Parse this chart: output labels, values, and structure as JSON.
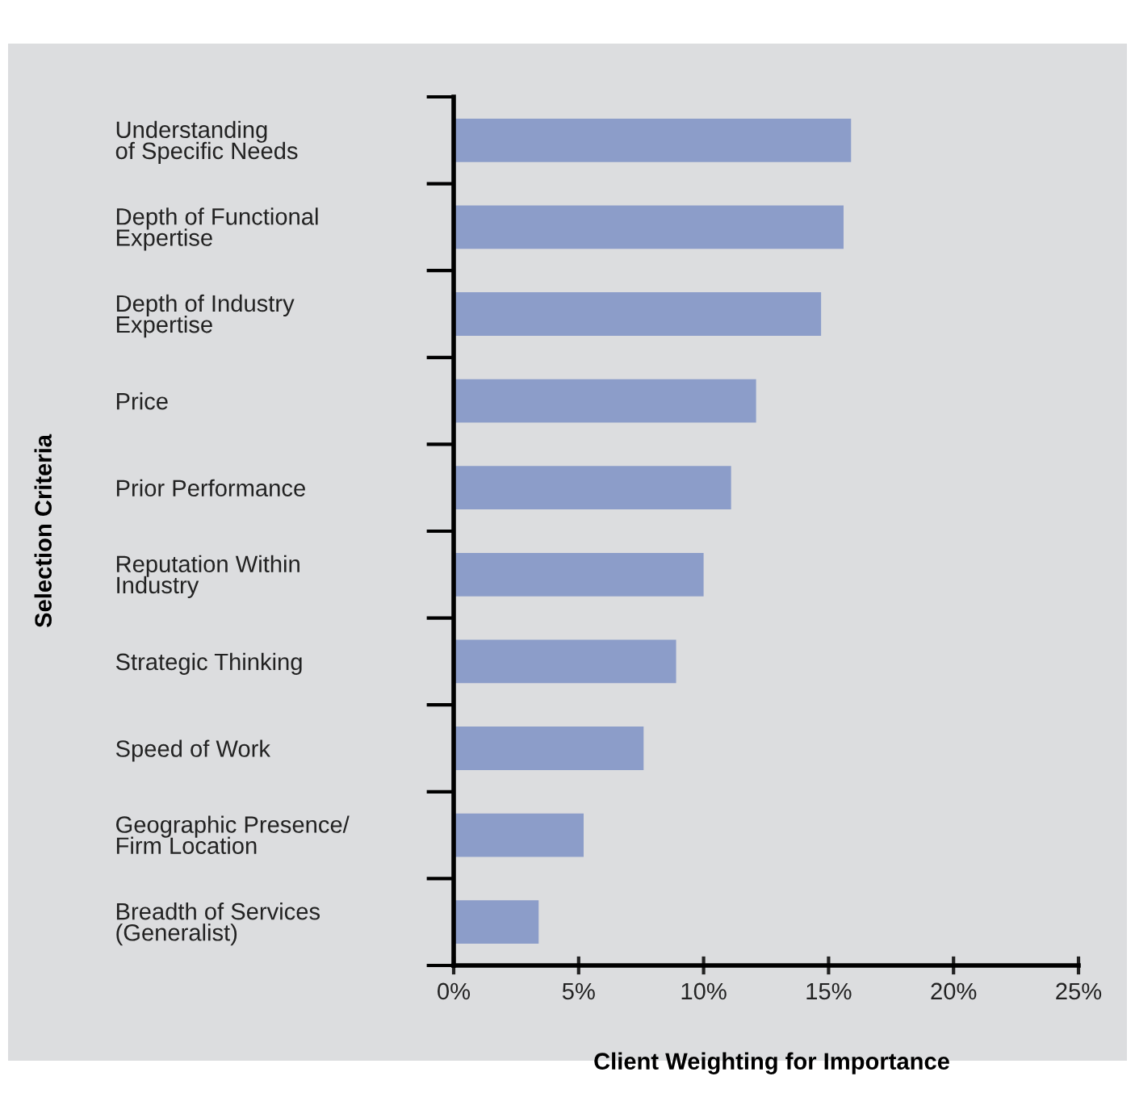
{
  "chart_data": {
    "type": "bar",
    "orientation": "horizontal",
    "categories": [
      "Understanding\nof Specific Needs",
      "Depth of Functional\nExpertise",
      "Depth of Industry\nExpertise",
      "Price",
      "Prior Performance",
      "Reputation Within\nIndustry",
      "Strategic Thinking",
      "Speed of Work",
      "Geographic Presence/\nFirm Location",
      "Breadth of Services\n(Generalist)"
    ],
    "values": [
      15.9,
      15.6,
      14.7,
      12.1,
      11.1,
      10.0,
      8.9,
      7.6,
      5.2,
      3.4
    ],
    "color": "#8c9dc9",
    "xlim": [
      0,
      25
    ],
    "xticks": [
      {
        "value": 0,
        "label": "0%"
      },
      {
        "value": 5,
        "label": "5%"
      },
      {
        "value": 10,
        "label": "10%"
      },
      {
        "value": 15,
        "label": "15%"
      },
      {
        "value": 20,
        "label": "20%"
      },
      {
        "value": 25,
        "label": "25%"
      }
    ],
    "xlabel": "Client Weighting for Importance",
    "ylabel": "Selection Criteria",
    "grid": false,
    "legend": false
  }
}
